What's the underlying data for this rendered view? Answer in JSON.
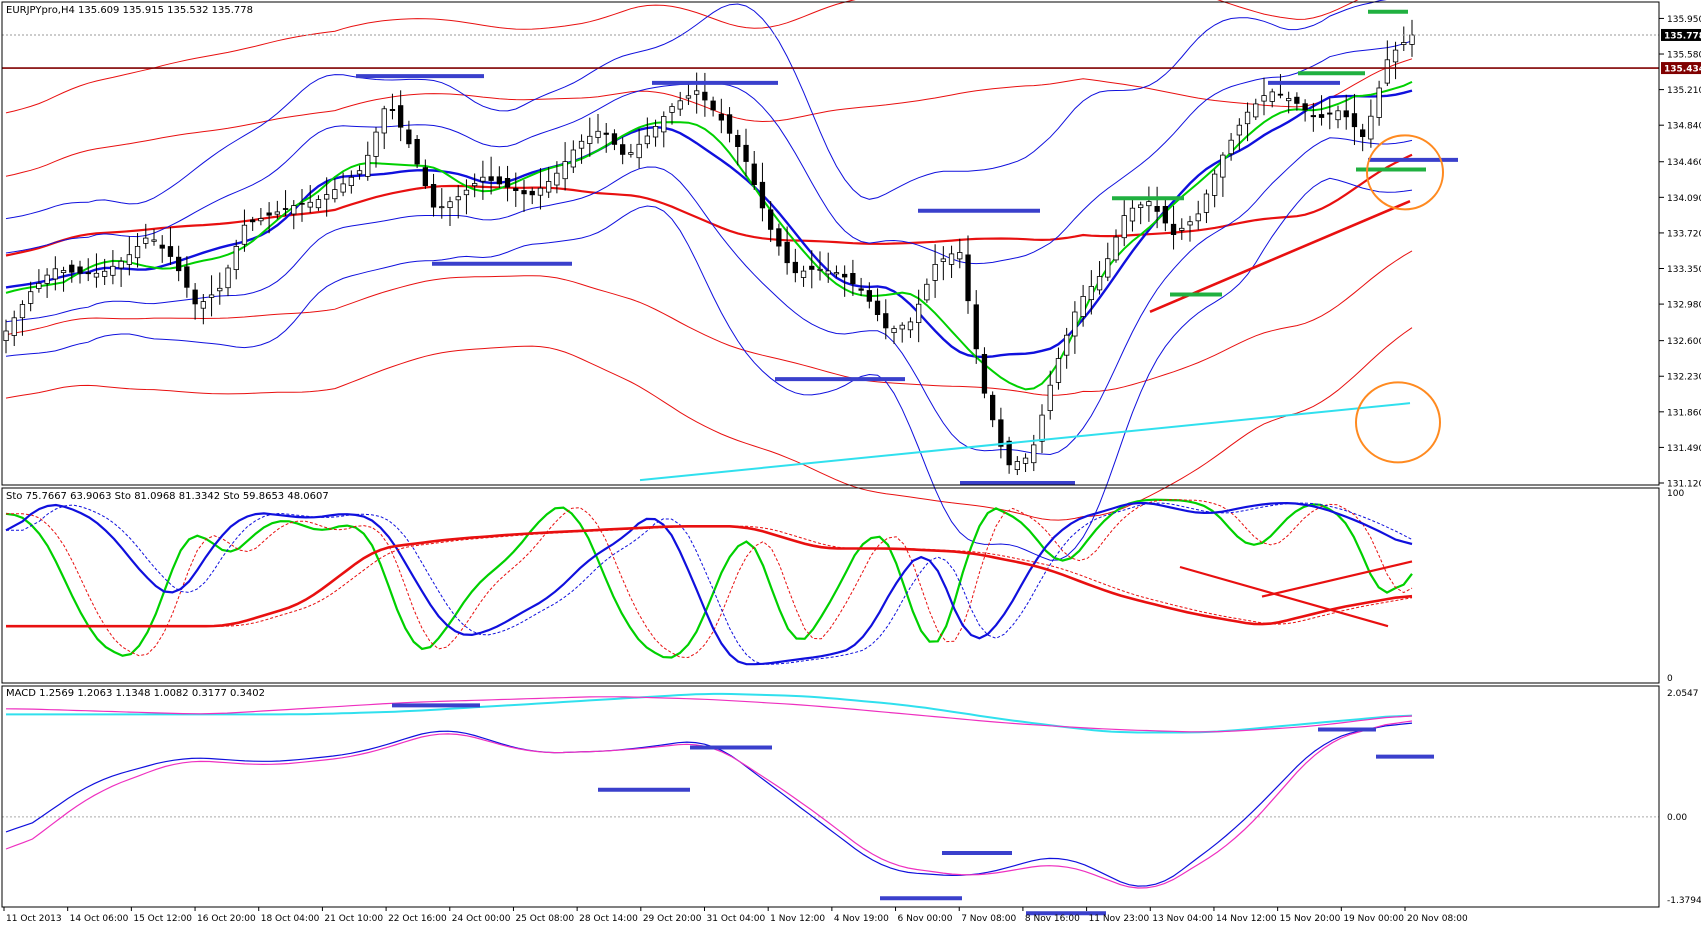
{
  "header": {
    "main": "EURJPYpro,H4  135.609 135.915 135.532 135.778",
    "stoch": "Sto 75.7667 63.9063  Sto 81.0968 81.3342  Sto 59.8653 48.0607",
    "macd": "MACD 1.2569 1.2063 1.1348 1.0082 0.3177 0.3402"
  },
  "colors": {
    "background": "#ffffff",
    "frame": "#000000",
    "bull_candle": "#ffffff",
    "bear_candle": "#000000",
    "red": "#e81010",
    "blue": "#1010dd",
    "green": "#00d000",
    "cyan": "#30e0ee",
    "magenta": "#ee30c0",
    "orange": "#ff8a20",
    "annotation_blue": "#3a40cc",
    "annotation_green": "#20b040",
    "hline": "#800000"
  },
  "chart_data": [
    {
      "type": "candlestick",
      "title": "EURJPYpro,H4",
      "symbol": "EURJPYpro",
      "timeframe": "H4",
      "ohlc_last": {
        "open": 135.609,
        "high": 135.915,
        "low": 135.532,
        "close": 135.778
      },
      "ylim": [
        131.12,
        136.1
      ],
      "y_ticks": [
        135.95,
        135.58,
        135.21,
        134.84,
        134.46,
        134.09,
        133.72,
        133.35,
        132.98,
        132.6,
        132.23,
        131.86,
        131.49,
        131.12
      ],
      "y_tick_labels": [
        "135.950",
        "135.580",
        "135.210",
        "134.840",
        "134.460",
        "134.090",
        "133.720",
        "133.350",
        "132.980",
        "132.600",
        "132.230",
        "131.860",
        "131.490",
        "131.120"
      ],
      "current_price_label": "135.778",
      "horizontal_line": {
        "value": 135.434,
        "label": "135.434"
      },
      "x_tick_labels": [
        "11 Oct 2013",
        "14 Oct 06:00",
        "15 Oct 12:00",
        "16 Oct 20:00",
        "18 Oct 04:00",
        "21 Oct 10:00",
        "22 Oct 16:00",
        "24 Oct 00:00",
        "25 Oct 08:00",
        "28 Oct 14:00",
        "29 Oct 20:00",
        "31 Oct 04:00",
        "1 Nov 12:00",
        "4 Nov 19:00",
        "6 Nov 00:00",
        "7 Nov 08:00",
        "8 Nov 16:00",
        "11 Nov 23:00",
        "13 Nov 04:00",
        "14 Nov 12:00",
        "15 Nov 20:00",
        "19 Nov 00:00",
        "20 Nov 08:00"
      ],
      "close_path": [
        132.7,
        133.1,
        133.35,
        133.3,
        133.3,
        133.45,
        133.7,
        133.45,
        132.95,
        133.15,
        133.8,
        133.9,
        134.0,
        134.05,
        134.2,
        134.4,
        135.1,
        134.6,
        133.95,
        134.1,
        134.3,
        134.2,
        134.1,
        134.3,
        134.65,
        134.8,
        134.5,
        134.75,
        135.05,
        135.2,
        134.9,
        134.5,
        133.8,
        133.3,
        133.35,
        133.3,
        133.1,
        132.7,
        132.8,
        133.4,
        133.55,
        132.1,
        131.3,
        131.4,
        132.3,
        133.0,
        133.3,
        133.95,
        134.05,
        133.7,
        133.9,
        134.5,
        134.95,
        135.2,
        135.1,
        134.9,
        135.0,
        134.7,
        135.55,
        135.778
      ]
    },
    {
      "type": "line",
      "title": "Sto 75.7667 63.9063  Sto 81.0968 81.3342  Sto 59.8653 48.0607",
      "indicator": "Stochastic",
      "ylim": [
        0,
        100
      ],
      "y_tick_labels": [
        "100",
        "0"
      ],
      "series": [
        {
          "line": "green",
          "values": [
            90,
            86,
            60,
            25,
            12,
            10,
            55,
            88,
            62,
            75,
            88,
            82,
            78,
            88,
            60,
            10,
            18,
            45,
            58,
            70,
            92,
            95,
            60,
            25,
            12,
            8,
            38,
            80,
            70,
            10,
            28,
            55,
            84,
            68,
            5,
            30,
            95,
            90,
            80,
            55,
            75,
            92,
            97,
            96,
            96,
            88,
            65,
            80,
            96,
            93,
            78,
            30,
            68
          ]
        },
        {
          "line": "blue",
          "values": [
            75,
            95,
            92,
            80,
            55,
            40,
            72,
            90,
            88,
            86,
            90,
            84,
            50,
            22,
            24,
            35,
            45,
            65,
            75,
            94,
            55,
            8,
            7,
            10,
            12,
            18,
            55,
            74,
            15,
            28,
            65,
            85,
            90,
            96,
            92,
            88,
            92,
            95,
            94,
            88,
            80,
            70
          ]
        },
        {
          "line": "red",
          "values": [
            28,
            28,
            28,
            28,
            40,
            70,
            75,
            78,
            80,
            82,
            82,
            70,
            70,
            68,
            60,
            45,
            35,
            28,
            38,
            45
          ]
        }
      ],
      "annotations": [
        "falling trend line on oscillator",
        "rising trend line on slow stochastic"
      ]
    },
    {
      "type": "line",
      "title": "MACD 1.2569 1.2063 1.1348 1.0082 0.3177 0.3402",
      "indicator": "MACD",
      "ylim": [
        -1.3794,
        2.0547
      ],
      "y_tick_labels": [
        "2.0547",
        "0.00",
        "-1.3794"
      ],
      "series": [
        {
          "line": "cyan",
          "values": [
            1.7,
            1.7,
            1.7,
            1.7,
            1.75,
            1.85,
            1.95,
            2.05,
            2.0,
            1.85,
            1.6,
            1.4,
            1.4,
            1.55,
            1.7
          ]
        },
        {
          "line": "magenta",
          "values": [
            1.8,
            1.75,
            1.7,
            1.8,
            1.9,
            1.95,
            2.0,
            1.95,
            1.85,
            1.7,
            1.55,
            1.45,
            1.4,
            1.5,
            1.7
          ]
        },
        {
          "line": "blue",
          "values": [
            -0.4,
            0.6,
            1.0,
            0.9,
            1.05,
            1.5,
            1.05,
            1.1,
            1.3,
            0.2,
            -0.9,
            -1.0,
            -0.6,
            -1.3,
            -0.2,
            1.3,
            1.6
          ]
        },
        {
          "line": "pink",
          "values": [
            -0.7,
            0.4,
            0.95,
            0.85,
            1.0,
            1.45,
            1.05,
            1.1,
            1.25,
            0.3,
            -0.8,
            -1.0,
            -0.75,
            -1.3,
            -0.4,
            1.25,
            1.65
          ]
        }
      ]
    }
  ]
}
